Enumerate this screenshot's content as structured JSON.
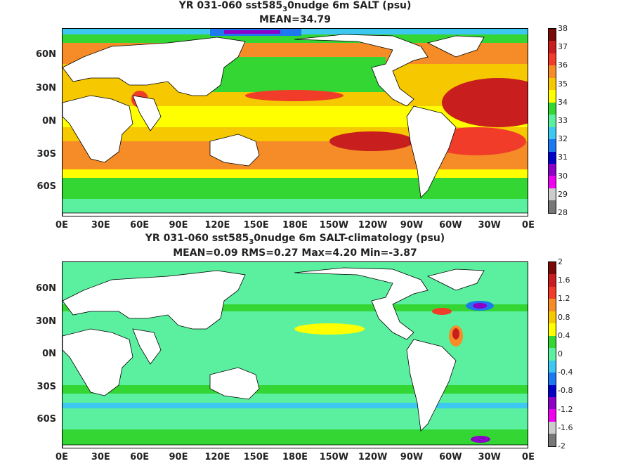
{
  "top": {
    "title_pre": "YR 031-060 sst585",
    "title_sub": "3",
    "title_post": "0nudge 6m SALT (psu)",
    "subtitle": "MEAN=34.79",
    "lat_labels": [
      "60N",
      "30N",
      "0N",
      "30S",
      "60S"
    ],
    "lon_labels": [
      "0E",
      "30E",
      "60E",
      "90E",
      "120E",
      "150E",
      "180E",
      "150W",
      "120W",
      "90W",
      "60W",
      "30W",
      "0E"
    ],
    "colorbar_labels": [
      "38",
      "37",
      "36",
      "35",
      "34",
      "33",
      "32",
      "31",
      "30",
      "29",
      "28"
    ],
    "colorbar_colors": [
      "#7a0a0a",
      "#c81e1e",
      "#f03c28",
      "#f58c28",
      "#f5c800",
      "#ffff00",
      "#33d633",
      "#5af0a0",
      "#3cc8f0",
      "#1e78f0",
      "#0000c8",
      "#8c00c8",
      "#f000f0",
      "#cccccc",
      "#777777"
    ]
  },
  "bottom": {
    "title_pre": "YR 031-060 sst585",
    "title_sub": "3",
    "title_post": "0nudge 6m SALT-climatology (psu)",
    "subtitle": "MEAN=0.09   RMS=0.27   Max=4.20   Min=-3.87",
    "lat_labels": [
      "60N",
      "30N",
      "0N",
      "30S",
      "60S"
    ],
    "lon_labels": [
      "0E",
      "30E",
      "60E",
      "90E",
      "120E",
      "150E",
      "180E",
      "150W",
      "120W",
      "90W",
      "60W",
      "30W",
      "0E"
    ],
    "colorbar_labels": [
      "2",
      "1.6",
      "1.2",
      "0.8",
      "0.4",
      "0",
      "-0.4",
      "-0.8",
      "-1.2",
      "-1.6",
      "-2"
    ],
    "colorbar_colors": [
      "#7a0a0a",
      "#c81e1e",
      "#f03c28",
      "#f58c28",
      "#f5c800",
      "#ffff00",
      "#33d633",
      "#5af0a0",
      "#3cc8f0",
      "#1e78f0",
      "#0000c8",
      "#8c00c8",
      "#f000f0",
      "#cccccc",
      "#777777"
    ]
  }
}
